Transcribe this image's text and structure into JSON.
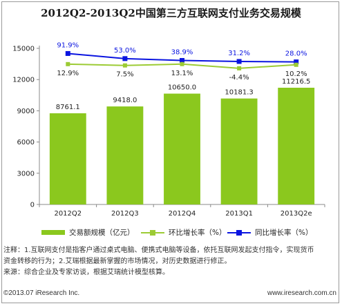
{
  "colors": {
    "bar": "#8bc81e",
    "qoq_line": "#9ccb34",
    "yoy_line": "#0a14e0",
    "axis": "#888888",
    "grid": "#d9d9d9"
  },
  "chart_data": {
    "type": "bar",
    "title": "2012Q2-2013Q2中国第三方互联网支付业务交易规模",
    "categories": [
      "2012Q2",
      "2012Q3",
      "2012Q4",
      "2013Q1",
      "2013Q2e"
    ],
    "ylim": [
      0,
      15000
    ],
    "yticks": [
      0,
      3000,
      6000,
      9000,
      12000,
      15000
    ],
    "grid": false,
    "legend_position": "bottom",
    "series": [
      {
        "name": "交易额规模（亿元）",
        "type": "bar",
        "values": [
          8761.1,
          9418.0,
          10650.0,
          10181.3,
          11216.5
        ],
        "labels": [
          "8761.1",
          "9418.0",
          "10650.0",
          "10181.3",
          "11216.5"
        ]
      },
      {
        "name": "环比增长率（%）",
        "type": "line",
        "values": [
          12.9,
          7.5,
          13.1,
          -4.4,
          10.2
        ],
        "labels": [
          "12.9%",
          "7.5%",
          "13.1%",
          "-4.4%",
          "10.2%"
        ]
      },
      {
        "name": "同比增长率（%）",
        "type": "line",
        "values": [
          91.9,
          53.0,
          38.9,
          31.2,
          28.0
        ],
        "labels": [
          "91.9%",
          "53.0%",
          "38.9%",
          "31.2%",
          "28.0%"
        ]
      }
    ]
  },
  "notes": [
    "注释：1.互联网支付是指客户通过桌式电脑、便携式电脑等设备，依托互联网发起支付指令，实现货币",
    "资金转移的行为；2.艾瑞根据最新掌握的市场情况，对历史数据进行修正。",
    "来源：综合企业及专家访谈，根据艾瑞统计模型核算。"
  ],
  "footer": {
    "copyright": "©2013.07 iResearch Inc.",
    "website": "www.iresearch.com.cn"
  }
}
